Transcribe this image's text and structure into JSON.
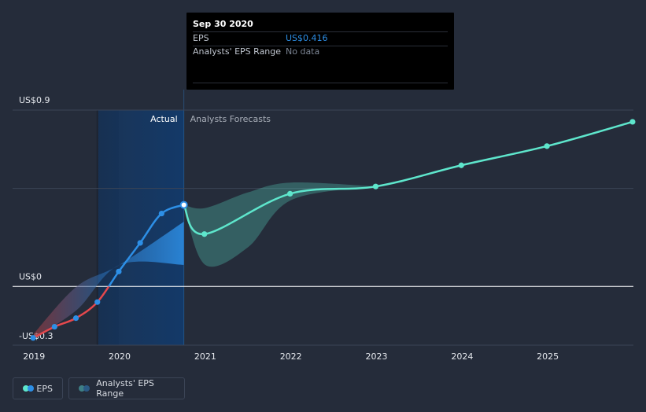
{
  "chart_data": {
    "type": "line",
    "title": "",
    "xlabel": "",
    "ylabel": "",
    "x_tick_labels": [
      "2019",
      "2020",
      "2021",
      "2022",
      "2023",
      "2024",
      "2025"
    ],
    "y_tick_labels": [
      "US$0.9",
      "US$0",
      "-US$0.3"
    ],
    "ylim": [
      -0.3,
      0.9
    ],
    "region_labels": {
      "actual": "Actual",
      "forecast": "Analysts Forecasts"
    },
    "series": [
      {
        "name": "EPS",
        "kind": "actual",
        "x": [
          2018.99,
          2019.24,
          2019.49,
          2019.74,
          2019.99,
          2020.24,
          2020.49,
          2020.75
        ],
        "y": [
          -0.263,
          -0.206,
          -0.162,
          -0.08,
          0.076,
          0.222,
          0.372,
          0.416
        ]
      },
      {
        "name": "EPS",
        "kind": "forecast",
        "x": [
          2020.75,
          2020.99,
          2021.99,
          2022.99,
          2023.99,
          2024.99,
          2025.99
        ],
        "y": [
          0.416,
          0.267,
          0.473,
          0.51,
          0.618,
          0.716,
          0.84
        ]
      }
    ],
    "actual_range_band": {
      "x": [
        2019.0,
        2019.5,
        2020.0,
        2020.75
      ],
      "low": [
        -0.263,
        -0.12,
        0.11,
        0.11
      ],
      "high": [
        -0.24,
        0.0,
        0.11,
        0.33
      ]
    },
    "forecast_range_band": {
      "x": [
        2020.75,
        2021.0,
        2021.5,
        2022.0,
        2023.0
      ],
      "low": [
        0.416,
        0.11,
        0.2,
        0.44,
        0.51
      ],
      "high": [
        0.416,
        0.4,
        0.48,
        0.53,
        0.51
      ]
    },
    "highlight": {
      "date": "Sep 30 2020",
      "eps_label": "EPS",
      "eps_value": "US$0.416",
      "range_label": "Analysts' EPS Range",
      "range_value": "No data"
    },
    "legend": [
      "EPS",
      "Analysts' EPS Range"
    ],
    "legend_position": "bottom-left"
  },
  "colors": {
    "background": "#252c3a",
    "actual_line": "#2d8fe6",
    "negative_line": "#e5484d",
    "forecast_line": "#5ee6cc",
    "highlight_band": "#123a6b",
    "grid": "#3b4456",
    "zero_line": "#ffffff",
    "tooltip_value": "#2d8fe6",
    "muted_text": "#7c8594"
  }
}
